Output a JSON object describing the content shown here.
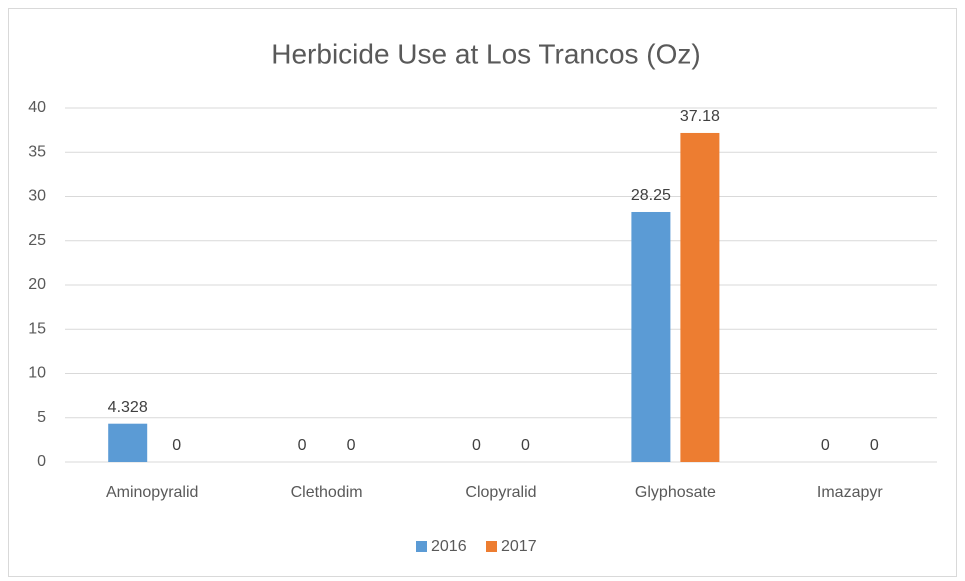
{
  "chart_data": {
    "type": "bar",
    "title": "Herbicide Use at Los Trancos (Oz)",
    "categories": [
      "Aminopyralid",
      "Clethodim",
      "Clopyralid",
      "Glyphosate",
      "Imazapyr"
    ],
    "series": [
      {
        "name": "2016",
        "color": "#5b9bd5",
        "values": [
          4.328,
          0,
          0,
          28.25,
          0
        ]
      },
      {
        "name": "2017",
        "color": "#ed7d31",
        "values": [
          0,
          0,
          0,
          37.18,
          0
        ]
      }
    ],
    "ylim": [
      0,
      40
    ],
    "yticks": [
      0,
      5,
      10,
      15,
      20,
      25,
      30,
      35,
      40
    ],
    "grid": true,
    "legend": "bottom"
  }
}
